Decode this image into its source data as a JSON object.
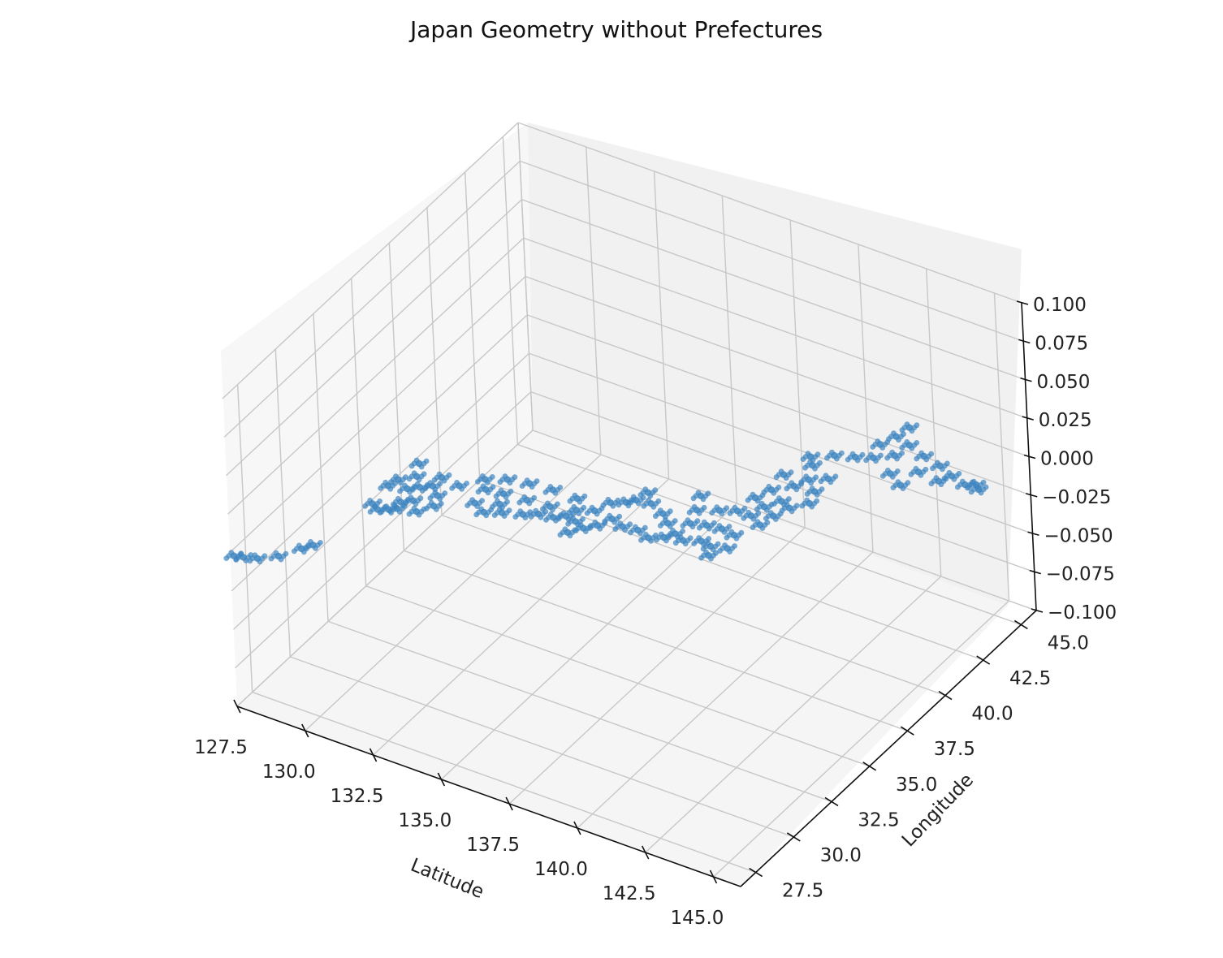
{
  "chart_data": {
    "type": "scatter",
    "projection": "3d",
    "title": "Japan Geometry without Prefectures",
    "xlabel": "Latitude",
    "ylabel": "Longitude",
    "zlabel": "",
    "x_ticks": [
      "127.5",
      "130.0",
      "132.5",
      "135.0",
      "137.5",
      "140.0",
      "142.5",
      "145.0"
    ],
    "y_ticks": [
      "27.5",
      "30.0",
      "32.5",
      "35.0",
      "37.5",
      "40.0",
      "42.5",
      "45.0"
    ],
    "z_ticks": [
      "−0.100",
      "−0.075",
      "−0.050",
      "−0.025",
      "0.000",
      "0.025",
      "0.050",
      "0.075",
      "0.100"
    ],
    "xlim": [
      127.5,
      146.0
    ],
    "ylim": [
      26.5,
      46.0
    ],
    "zlim": [
      -0.1,
      0.1
    ],
    "grid": true,
    "point_color": "#3d85c0",
    "pane_color": "#f3f3f3",
    "series": [
      {
        "name": "",
        "z_all": 0,
        "points": [
          [
            127.7,
            26.4
          ],
          [
            128.0,
            26.5
          ],
          [
            128.4,
            26.7
          ],
          [
            128.9,
            27.2
          ],
          [
            129.3,
            28.0
          ],
          [
            129.5,
            28.4
          ],
          [
            129.9,
            31.6
          ],
          [
            130.2,
            31.4
          ],
          [
            130.5,
            31.6
          ],
          [
            130.7,
            31.8
          ],
          [
            130.6,
            32.2
          ],
          [
            130.9,
            32.5
          ],
          [
            130.4,
            33.0
          ],
          [
            130.7,
            33.3
          ],
          [
            131.0,
            33.6
          ],
          [
            131.4,
            33.2
          ],
          [
            131.6,
            32.6
          ],
          [
            131.3,
            32.0
          ],
          [
            129.8,
            32.8
          ],
          [
            129.9,
            33.3
          ],
          [
            130.0,
            34.5
          ],
          [
            130.3,
            33.8
          ],
          [
            131.0,
            34.2
          ],
          [
            131.7,
            34.1
          ],
          [
            132.5,
            34.4
          ],
          [
            133.1,
            34.5
          ],
          [
            133.9,
            34.6
          ],
          [
            134.7,
            34.7
          ],
          [
            132.2,
            34.9
          ],
          [
            132.8,
            35.3
          ],
          [
            133.5,
            35.5
          ],
          [
            134.3,
            35.6
          ],
          [
            135.2,
            35.6
          ],
          [
            132.6,
            33.5
          ],
          [
            133.1,
            33.2
          ],
          [
            133.6,
            33.5
          ],
          [
            134.2,
            33.8
          ],
          [
            134.6,
            34.1
          ],
          [
            133.3,
            33.9
          ],
          [
            135.1,
            34.2
          ],
          [
            135.4,
            34.5
          ],
          [
            135.8,
            34.4
          ],
          [
            135.9,
            33.7
          ],
          [
            136.2,
            34.2
          ],
          [
            136.5,
            34.6
          ],
          [
            135.5,
            35.0
          ],
          [
            136.0,
            35.3
          ],
          [
            136.7,
            35.2
          ],
          [
            137.2,
            35.0
          ],
          [
            137.7,
            35.1
          ],
          [
            138.2,
            34.9
          ],
          [
            136.2,
            36.0
          ],
          [
            136.8,
            36.6
          ],
          [
            137.3,
            36.7
          ],
          [
            137.9,
            36.4
          ],
          [
            138.3,
            36.0
          ],
          [
            138.8,
            35.6
          ],
          [
            139.2,
            35.4
          ],
          [
            139.7,
            35.7
          ],
          [
            140.1,
            35.6
          ],
          [
            140.3,
            35.1
          ],
          [
            140.6,
            35.8
          ],
          [
            138.6,
            35.2
          ],
          [
            138.9,
            36.4
          ],
          [
            139.4,
            36.6
          ],
          [
            139.9,
            36.7
          ],
          [
            140.4,
            36.6
          ],
          [
            138.7,
            37.2
          ],
          [
            139.3,
            37.6
          ],
          [
            139.8,
            37.9
          ],
          [
            140.3,
            37.9
          ],
          [
            140.8,
            37.6
          ],
          [
            140.9,
            38.3
          ],
          [
            140.4,
            38.6
          ],
          [
            139.9,
            38.9
          ],
          [
            140.1,
            39.6
          ],
          [
            140.7,
            39.2
          ],
          [
            141.1,
            39.0
          ],
          [
            141.5,
            39.6
          ],
          [
            141.3,
            40.3
          ],
          [
            140.6,
            40.2
          ],
          [
            140.0,
            40.6
          ],
          [
            140.8,
            40.8
          ],
          [
            141.3,
            41.2
          ],
          [
            138.4,
            38.0
          ],
          [
            136.9,
            37.2
          ],
          [
            136.6,
            36.3
          ],
          [
            140.5,
            41.6
          ],
          [
            140.2,
            42.0
          ],
          [
            140.8,
            42.5
          ],
          [
            141.4,
            42.8
          ],
          [
            141.9,
            43.1
          ],
          [
            142.4,
            43.6
          ],
          [
            141.7,
            43.9
          ],
          [
            141.9,
            44.6
          ],
          [
            142.0,
            45.3
          ],
          [
            142.5,
            44.4
          ],
          [
            143.2,
            44.1
          ],
          [
            143.9,
            43.9
          ],
          [
            144.5,
            43.6
          ],
          [
            145.1,
            43.4
          ],
          [
            145.4,
            43.6
          ],
          [
            143.5,
            43.2
          ],
          [
            142.8,
            42.6
          ],
          [
            143.4,
            42.2
          ],
          [
            144.3,
            43.1
          ],
          [
            145.6,
            43.4
          ]
        ]
      }
    ]
  }
}
